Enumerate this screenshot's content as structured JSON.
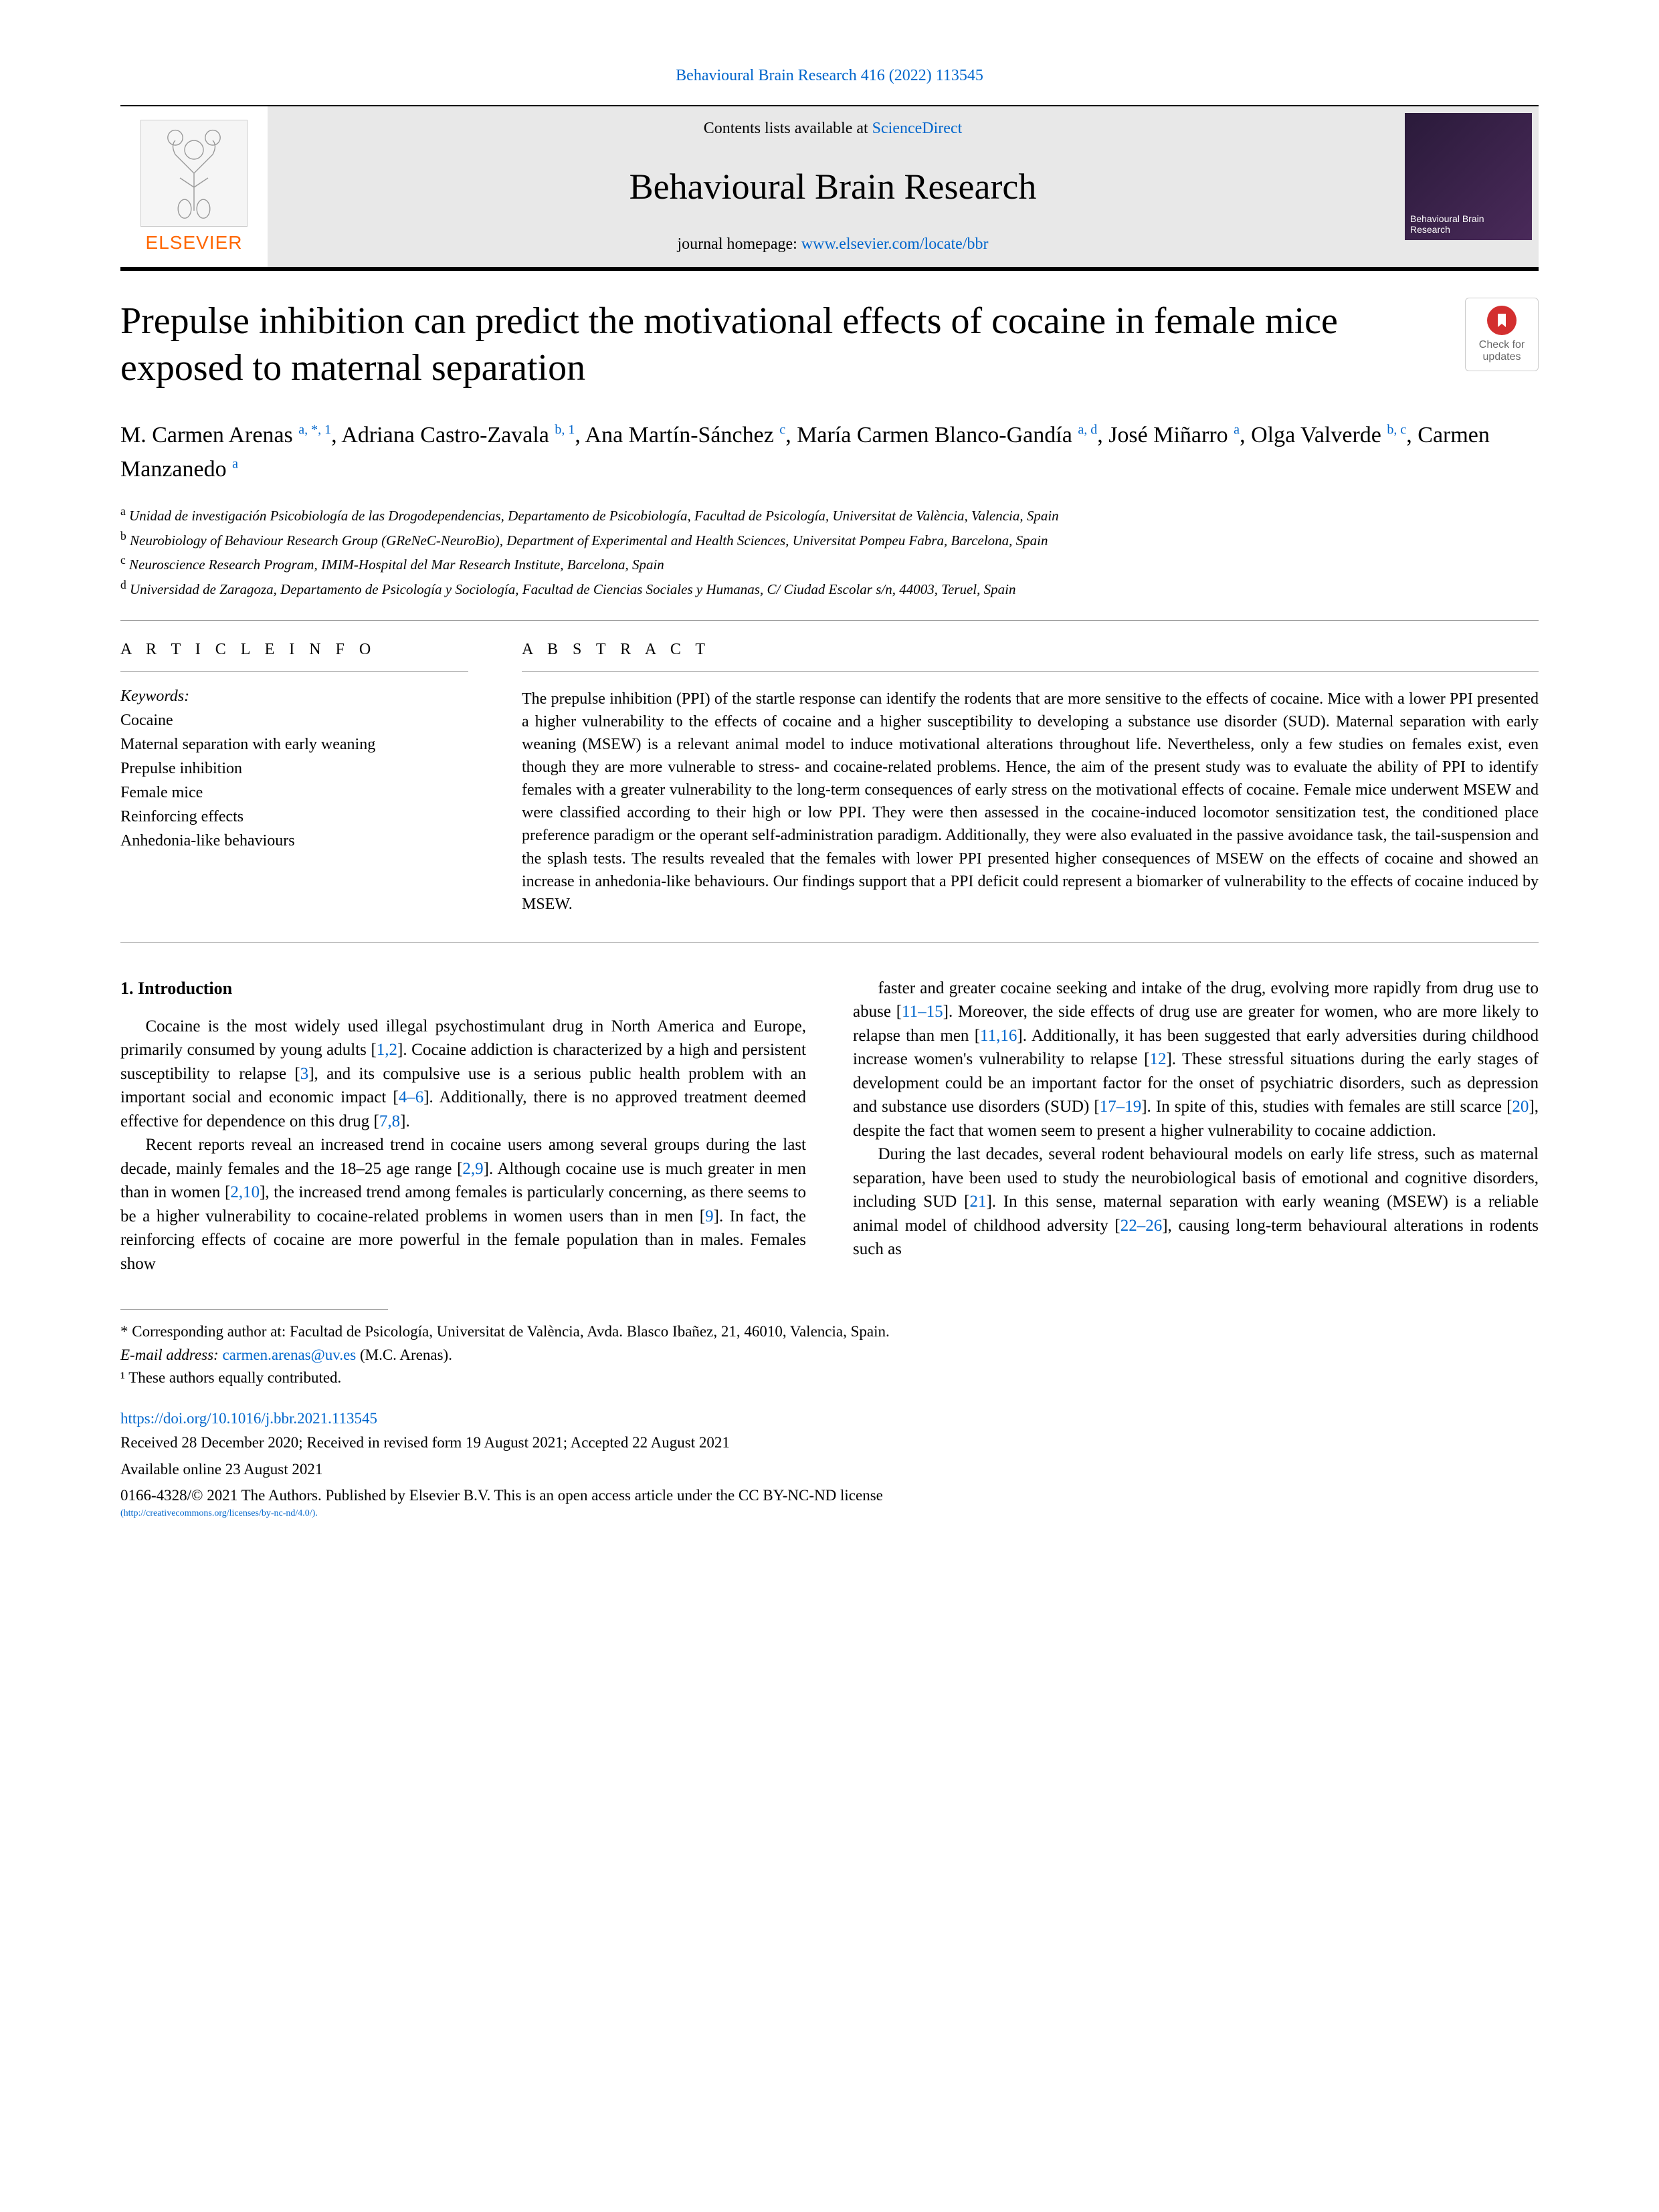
{
  "citation": {
    "text": "Behavioural Brain Research 416 (2022) 113545"
  },
  "header": {
    "elsevier_label": "ELSEVIER",
    "contents_prefix": "Contents lists available at ",
    "contents_link": "ScienceDirect",
    "journal_name": "Behavioural Brain Research",
    "homepage_prefix": "journal homepage: ",
    "homepage_url": "www.elsevier.com/locate/bbr",
    "cover_caption": "Behavioural Brain Research"
  },
  "updates": {
    "line1": "Check for",
    "line2": "updates"
  },
  "title": "Prepulse inhibition can predict the motivational effects of cocaine in female mice exposed to maternal separation",
  "authors_html": "M. Carmen Arenas <sup>a, *, 1</sup>, Adriana Castro-Zavala <sup>b, 1</sup>, Ana Martín-Sánchez <sup>c</sup>, María Carmen Blanco-Gandía <sup>a, d</sup>, José Miñarro <sup>a</sup>, Olga Valverde <sup>b, c</sup>, Carmen Manzanedo <sup>a</sup>",
  "affiliations": [
    {
      "sup": "a",
      "text": "Unidad de investigación Psicobiología de las Drogodependencias, Departamento de Psicobiología, Facultad de Psicología, Universitat de València, Valencia, Spain"
    },
    {
      "sup": "b",
      "text": "Neurobiology of Behaviour Research Group (GReNeC-NeuroBio), Department of Experimental and Health Sciences, Universitat Pompeu Fabra, Barcelona, Spain"
    },
    {
      "sup": "c",
      "text": "Neuroscience Research Program, IMIM-Hospital del Mar Research Institute, Barcelona, Spain"
    },
    {
      "sup": "d",
      "text": "Universidad de Zaragoza, Departamento de Psicología y Sociología, Facultad de Ciencias Sociales y Humanas, C/ Ciudad Escolar s/n, 44003, Teruel, Spain"
    }
  ],
  "info_heading": "A R T I C L E  I N F O",
  "abstract_heading": "A B S T R A C T",
  "keywords_label": "Keywords:",
  "keywords": [
    "Cocaine",
    "Maternal separation with early weaning",
    "Prepulse inhibition",
    "Female mice",
    "Reinforcing effects",
    "Anhedonia-like behaviours"
  ],
  "abstract": "The prepulse inhibition (PPI) of the startle response can identify the rodents that are more sensitive to the effects of cocaine. Mice with a lower PPI presented a higher vulnerability to the effects of cocaine and a higher susceptibility to developing a substance use disorder (SUD). Maternal separation with early weaning (MSEW) is a relevant animal model to induce motivational alterations throughout life. Nevertheless, only a few studies on females exist, even though they are more vulnerable to stress- and cocaine-related problems. Hence, the aim of the present study was to evaluate the ability of PPI to identify females with a greater vulnerability to the long-term consequences of early stress on the motivational effects of cocaine. Female mice underwent MSEW and were classified according to their high or low PPI. They were then assessed in the cocaine-induced locomotor sensitization test, the conditioned place preference paradigm or the operant self-administration paradigm. Additionally, they were also evaluated in the passive avoidance task, the tail-suspension and the splash tests. The results revealed that the females with lower PPI presented higher consequences of MSEW on the effects of cocaine and showed an increase in anhedonia-like behaviours. Our findings support that a PPI deficit could represent a biomarker of vulnerability to the effects of cocaine induced by MSEW.",
  "sections": {
    "intro_heading": "1. Introduction",
    "intro_p1": "Cocaine is the most widely used illegal psychostimulant drug in North America and Europe, primarily consumed by young adults [1,2]. Cocaine addiction is characterized by a high and persistent susceptibility to relapse [3], and its compulsive use is a serious public health problem with an important social and economic impact [4–6]. Additionally, there is no approved treatment deemed effective for dependence on this drug [7,8].",
    "intro_p2": "Recent reports reveal an increased trend in cocaine users among several groups during the last decade, mainly females and the 18–25 age range [2,9]. Although cocaine use is much greater in men than in women [2,10], the increased trend among females is particularly concerning, as there seems to be a higher vulnerability to cocaine-related problems in women users than in men [9]. In fact, the reinforcing effects of cocaine are more powerful in the female population than in males. Females show",
    "intro_p3": "faster and greater cocaine seeking and intake of the drug, evolving more rapidly from drug use to abuse [11–15]. Moreover, the side effects of drug use are greater for women, who are more likely to relapse than men [11,16]. Additionally, it has been suggested that early adversities during childhood increase women's vulnerability to relapse [12]. These stressful situations during the early stages of development could be an important factor for the onset of psychiatric disorders, such as depression and substance use disorders (SUD) [17–19]. In spite of this, studies with females are still scarce [20], despite the fact that women seem to present a higher vulnerability to cocaine addiction.",
    "intro_p4": "During the last decades, several rodent behavioural models on early life stress, such as maternal separation, have been used to study the neurobiological basis of emotional and cognitive disorders, including SUD [21]. In this sense, maternal separation with early weaning (MSEW) is a reliable animal model of childhood adversity [22–26], causing long-term behavioural alterations in rodents such as"
  },
  "footnotes": {
    "corresponding": "* Corresponding author at: Facultad de Psicología, Universitat de València, Avda. Blasco Ibañez, 21, 46010, Valencia, Spain.",
    "email_label": "E-mail address: ",
    "email": "carmen.arenas@uv.es",
    "email_suffix": " (M.C. Arenas).",
    "equal": "¹ These authors equally contributed."
  },
  "doi": "https://doi.org/10.1016/j.bbr.2021.113545",
  "history": "Received 28 December 2020; Received in revised form 19 August 2021; Accepted 22 August 2021",
  "available": "Available online 23 August 2021",
  "license_line": "0166-4328/© 2021 The Authors. Published by Elsevier B.V. This is an open access article under the CC BY-NC-ND license",
  "license_url": "(http://creativecommons.org/licenses/by-nc-nd/4.0/)."
}
